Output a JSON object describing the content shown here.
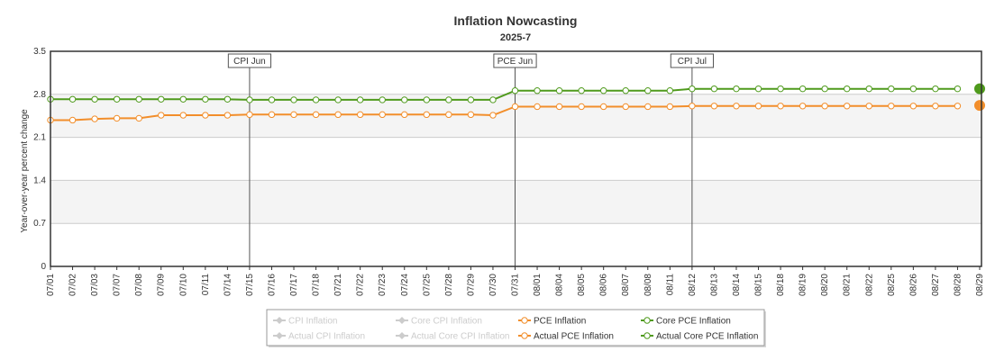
{
  "chart_data": {
    "type": "line",
    "title": "Inflation Nowcasting",
    "subtitle": "2025-7",
    "ylabel": "Year-over-year percent change",
    "xlabel": "",
    "ylim": [
      0,
      3.5
    ],
    "yticks": [
      "0",
      "0.7",
      "1.4",
      "2.1",
      "2.8",
      "3.5"
    ],
    "categories": [
      "07/01",
      "07/02",
      "07/03",
      "07/07",
      "07/08",
      "07/09",
      "07/10",
      "07/11",
      "07/14",
      "07/15",
      "07/16",
      "07/17",
      "07/18",
      "07/21",
      "07/22",
      "07/23",
      "07/24",
      "07/25",
      "07/28",
      "07/29",
      "07/30",
      "07/31",
      "08/01",
      "08/04",
      "08/05",
      "08/06",
      "08/07",
      "08/08",
      "08/11",
      "08/12",
      "08/13",
      "08/14",
      "08/15",
      "08/18",
      "08/19",
      "08/20",
      "08/21",
      "08/22",
      "08/25",
      "08/26",
      "08/27",
      "08/28",
      "08/29"
    ],
    "series": [
      {
        "name": "Core PCE Inflation",
        "color": "#4f9a1c",
        "values": [
          2.72,
          2.72,
          2.72,
          2.72,
          2.72,
          2.72,
          2.72,
          2.72,
          2.72,
          2.71,
          2.71,
          2.71,
          2.71,
          2.71,
          2.71,
          2.71,
          2.71,
          2.71,
          2.71,
          2.71,
          2.71,
          2.86,
          2.86,
          2.86,
          2.86,
          2.86,
          2.86,
          2.86,
          2.86,
          2.89,
          2.89,
          2.89,
          2.89,
          2.89,
          2.89,
          2.89,
          2.89,
          2.89,
          2.89,
          2.89,
          2.89,
          2.89,
          null
        ]
      },
      {
        "name": "PCE Inflation",
        "color": "#f28e2b",
        "values": [
          2.38,
          2.38,
          2.4,
          2.41,
          2.41,
          2.46,
          2.46,
          2.46,
          2.46,
          2.47,
          2.47,
          2.47,
          2.47,
          2.47,
          2.47,
          2.47,
          2.47,
          2.47,
          2.47,
          2.47,
          2.46,
          2.6,
          2.6,
          2.6,
          2.6,
          2.6,
          2.6,
          2.6,
          2.6,
          2.61,
          2.61,
          2.61,
          2.61,
          2.61,
          2.61,
          2.61,
          2.61,
          2.61,
          2.61,
          2.61,
          2.61,
          2.61,
          null
        ]
      },
      {
        "name": "Actual Core PCE Inflation",
        "color": "#4f9a1c",
        "points": [
          {
            "x": "08/29",
            "y": 2.89
          }
        ]
      },
      {
        "name": "Actual PCE Inflation",
        "color": "#f28e2b",
        "points": [
          {
            "x": "08/29",
            "y": 2.62
          }
        ]
      }
    ],
    "annotations": [
      {
        "label": "CPI Jun",
        "x": "07/15"
      },
      {
        "label": "PCE Jun",
        "x": "07/31"
      },
      {
        "label": "CPI Jul",
        "x": "08/12"
      }
    ],
    "bands": [
      {
        "from": 0.7,
        "to": 1.4
      },
      {
        "from": 2.1,
        "to": 2.8
      }
    ],
    "grid": true,
    "legend": {
      "position": "bottom",
      "items": [
        {
          "label": "CPI Inflation",
          "color": "#cccccc",
          "active": false,
          "marker": "diamond"
        },
        {
          "label": "Core CPI Inflation",
          "color": "#cccccc",
          "active": false,
          "marker": "diamond"
        },
        {
          "label": "PCE Inflation",
          "color": "#f28e2b",
          "active": true,
          "marker": "circle"
        },
        {
          "label": "Core PCE Inflation",
          "color": "#4f9a1c",
          "active": true,
          "marker": "circle"
        },
        {
          "label": "Actual CPI Inflation",
          "color": "#cccccc",
          "active": false,
          "marker": "diamond"
        },
        {
          "label": "Actual Core CPI Inflation",
          "color": "#cccccc",
          "active": false,
          "marker": "diamond"
        },
        {
          "label": "Actual PCE Inflation",
          "color": "#f28e2b",
          "active": true,
          "marker": "circle"
        },
        {
          "label": "Actual Core PCE Inflation",
          "color": "#4f9a1c",
          "active": true,
          "marker": "circle"
        }
      ]
    }
  }
}
